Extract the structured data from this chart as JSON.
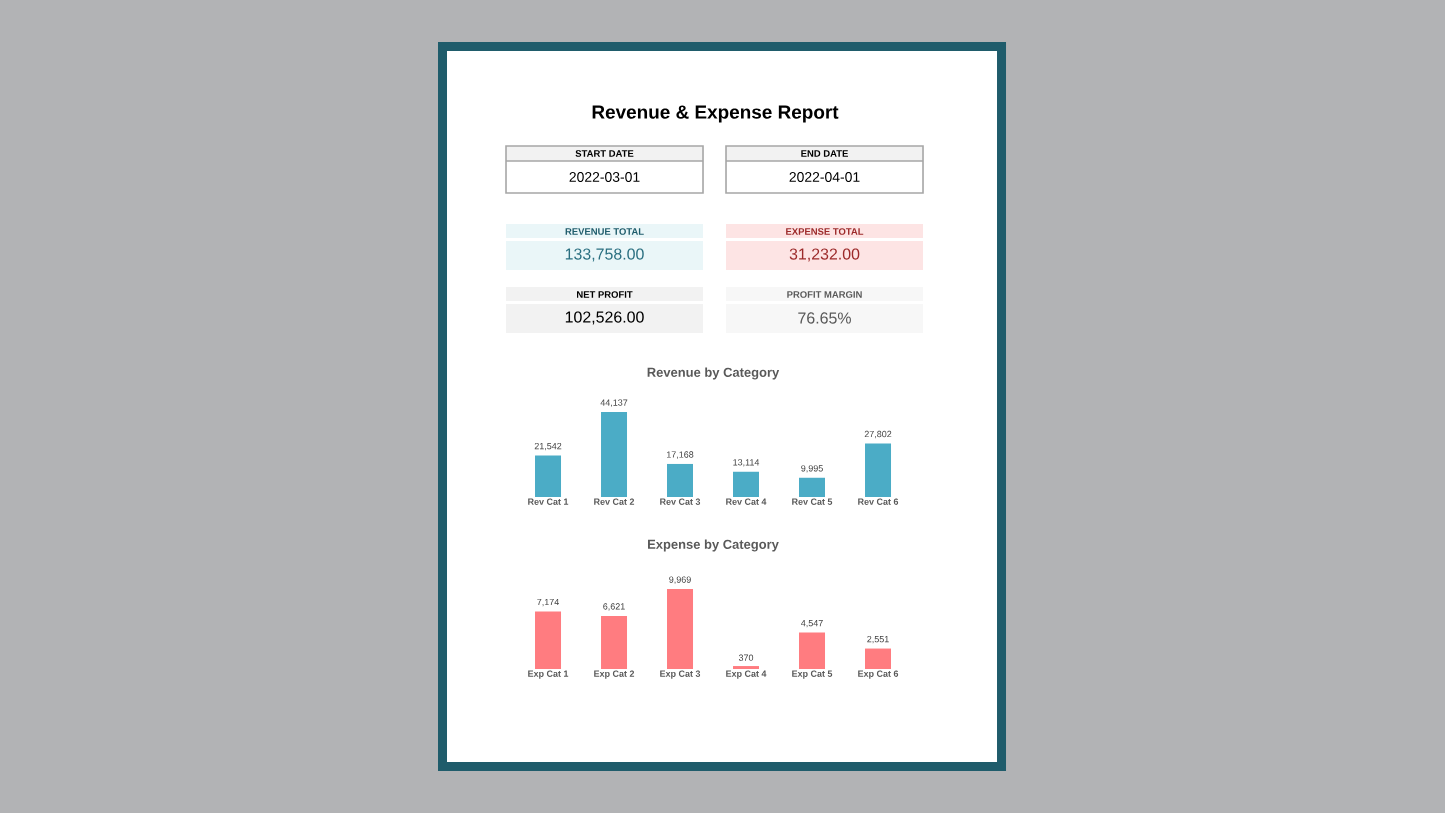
{
  "chart_data": [
    {
      "type": "other",
      "title": "Revenue & Expense Report",
      "annotations": [
        "START DATE",
        "2022-03-01",
        "END DATE",
        "2022-04-01",
        "REVENUE TOTAL",
        "133,758.00",
        "EXPENSE TOTAL",
        "31,232.00",
        "NET PROFIT",
        "102,526.00",
        "PROFIT MARGIN",
        "76.65%"
      ]
    },
    {
      "type": "bar",
      "title": "Revenue by Category",
      "categories": [
        "Rev Cat 1",
        "Rev Cat 2",
        "Rev Cat 3",
        "Rev Cat 4",
        "Rev Cat 5",
        "Rev Cat 6"
      ],
      "values": [
        21542,
        44137,
        17168,
        13114,
        9995,
        27802
      ],
      "value_labels": [
        "21,542",
        "44,137",
        "17,168",
        "13,114",
        "9,995",
        "27,802"
      ],
      "color": "#4bacc6"
    },
    {
      "type": "bar",
      "title": "Expense by Category",
      "categories": [
        "Exp Cat 1",
        "Exp Cat 2",
        "Exp Cat 3",
        "Exp Cat 4",
        "Exp Cat 5",
        "Exp Cat 6"
      ],
      "values": [
        7174,
        6621,
        9969,
        370,
        4547,
        2551
      ],
      "value_labels": [
        "7,174",
        "6,621",
        "9,969",
        "370",
        "4,547",
        "2,551"
      ],
      "color": "#ff7c80"
    }
  ]
}
